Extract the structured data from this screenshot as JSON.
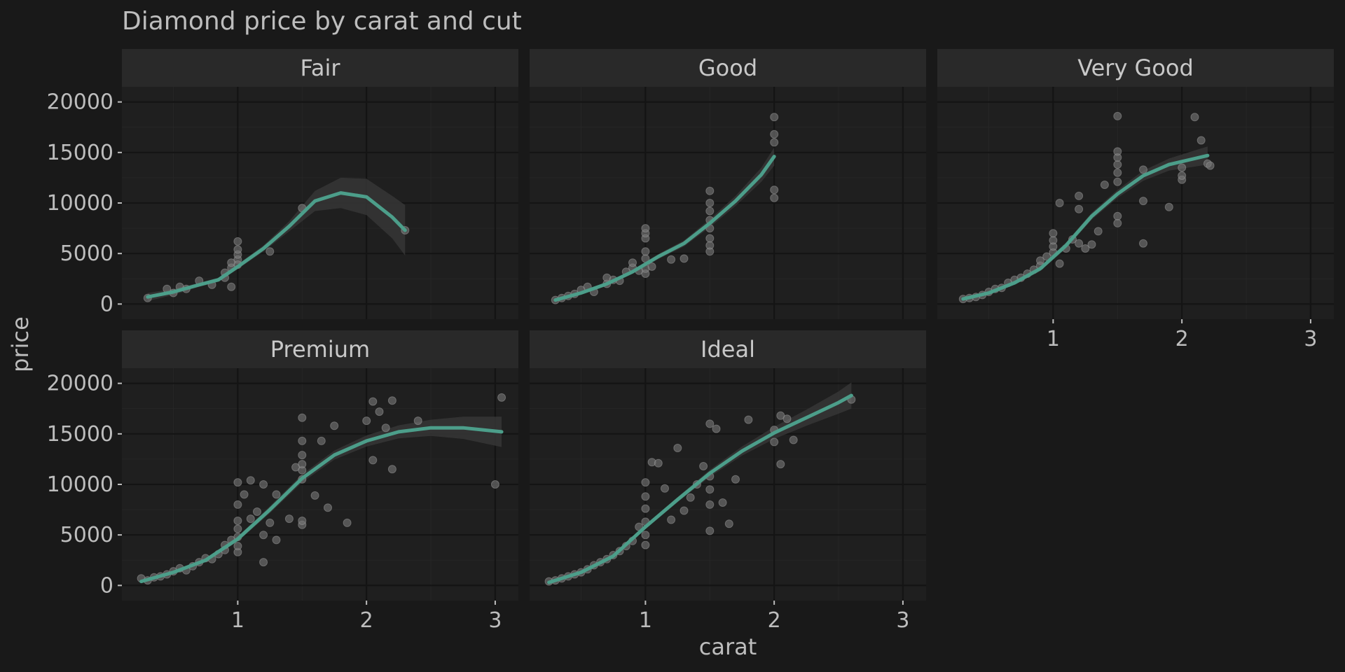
{
  "chart_data": {
    "type": "scatter",
    "title": "Diamond price by carat and cut",
    "xlabel": "carat",
    "ylabel": "price",
    "xlim": [
      0.1,
      3.18
    ],
    "ylim": [
      -1500,
      21500
    ],
    "x_ticks": [
      1,
      2,
      3
    ],
    "y_ticks": [
      0,
      5000,
      10000,
      15000,
      20000
    ],
    "grid": true,
    "colors": {
      "background": "#191919",
      "panel": "#1f1f1f",
      "strip": "#292929",
      "grid_major": "#141414",
      "grid_minor": "#262626",
      "point": "#7a7a7a",
      "smooth_line": "#4c9e8a",
      "ribbon": "#3a3a3a",
      "text": "#bdbdbd"
    },
    "panels": [
      {
        "name": "Fair",
        "points": [
          [
            0.3,
            600
          ],
          [
            0.45,
            1500
          ],
          [
            0.5,
            1100
          ],
          [
            0.55,
            1700
          ],
          [
            0.6,
            1500
          ],
          [
            0.7,
            2300
          ],
          [
            0.8,
            1900
          ],
          [
            0.9,
            2600
          ],
          [
            0.9,
            3100
          ],
          [
            0.95,
            3600
          ],
          [
            0.95,
            4100
          ],
          [
            1.0,
            4400
          ],
          [
            1.0,
            3900
          ],
          [
            1.0,
            4900
          ],
          [
            1.0,
            5400
          ],
          [
            1.0,
            6200
          ],
          [
            0.95,
            1700
          ],
          [
            1.25,
            5200
          ],
          [
            1.5,
            9500
          ],
          [
            2.3,
            7300
          ]
        ],
        "smooth": [
          [
            0.3,
            700
          ],
          [
            0.5,
            1200
          ],
          [
            0.7,
            1900
          ],
          [
            0.85,
            2400
          ],
          [
            1.0,
            3700
          ],
          [
            1.2,
            5500
          ],
          [
            1.4,
            7700
          ],
          [
            1.6,
            10200
          ],
          [
            1.8,
            11000
          ],
          [
            2.0,
            10600
          ],
          [
            2.2,
            8600
          ],
          [
            2.3,
            7300
          ]
        ],
        "ribbon_halfwidth": [
          400,
          300,
          200,
          200,
          250,
          300,
          500,
          1000,
          1500,
          1800,
          2100,
          2500
        ]
      },
      {
        "name": "Good",
        "points": [
          [
            0.3,
            400
          ],
          [
            0.35,
            600
          ],
          [
            0.4,
            800
          ],
          [
            0.45,
            1000
          ],
          [
            0.5,
            1400
          ],
          [
            0.55,
            1700
          ],
          [
            0.6,
            1200
          ],
          [
            0.7,
            2000
          ],
          [
            0.7,
            2600
          ],
          [
            0.75,
            2400
          ],
          [
            0.8,
            2300
          ],
          [
            0.85,
            3200
          ],
          [
            0.9,
            3600
          ],
          [
            0.9,
            4100
          ],
          [
            0.95,
            3300
          ],
          [
            1.0,
            3000
          ],
          [
            1.0,
            3500
          ],
          [
            1.0,
            4500
          ],
          [
            1.0,
            5200
          ],
          [
            1.0,
            6500
          ],
          [
            1.0,
            7000
          ],
          [
            1.0,
            7500
          ],
          [
            1.05,
            3700
          ],
          [
            1.2,
            4400
          ],
          [
            1.3,
            4500
          ],
          [
            1.5,
            5200
          ],
          [
            1.5,
            5800
          ],
          [
            1.5,
            6500
          ],
          [
            1.5,
            7500
          ],
          [
            1.5,
            8300
          ],
          [
            1.5,
            9200
          ],
          [
            1.5,
            10000
          ],
          [
            1.5,
            11200
          ],
          [
            2.0,
            10500
          ],
          [
            2.0,
            11300
          ],
          [
            2.0,
            16000
          ],
          [
            2.0,
            16800
          ],
          [
            2.0,
            18500
          ]
        ],
        "smooth": [
          [
            0.3,
            400
          ],
          [
            0.5,
            1100
          ],
          [
            0.7,
            2000
          ],
          [
            0.9,
            3200
          ],
          [
            1.1,
            4700
          ],
          [
            1.3,
            6000
          ],
          [
            1.5,
            8000
          ],
          [
            1.7,
            10200
          ],
          [
            1.9,
            12800
          ],
          [
            2.0,
            14600
          ]
        ],
        "ribbon_halfwidth": [
          200,
          150,
          150,
          200,
          250,
          300,
          400,
          500,
          700,
          900
        ]
      },
      {
        "name": "Very Good",
        "points": [
          [
            0.3,
            500
          ],
          [
            0.35,
            600
          ],
          [
            0.4,
            700
          ],
          [
            0.45,
            900
          ],
          [
            0.5,
            1200
          ],
          [
            0.55,
            1500
          ],
          [
            0.6,
            1600
          ],
          [
            0.65,
            2100
          ],
          [
            0.7,
            2400
          ],
          [
            0.75,
            2600
          ],
          [
            0.8,
            3000
          ],
          [
            0.85,
            3400
          ],
          [
            0.9,
            3800
          ],
          [
            0.9,
            4300
          ],
          [
            0.95,
            4700
          ],
          [
            1.0,
            5100
          ],
          [
            1.0,
            5700
          ],
          [
            1.0,
            6300
          ],
          [
            1.0,
            7000
          ],
          [
            1.05,
            4000
          ],
          [
            1.05,
            10000
          ],
          [
            1.1,
            5500
          ],
          [
            1.15,
            6400
          ],
          [
            1.2,
            6000
          ],
          [
            1.2,
            9400
          ],
          [
            1.2,
            10700
          ],
          [
            1.25,
            5500
          ],
          [
            1.3,
            5900
          ],
          [
            1.35,
            7200
          ],
          [
            1.4,
            11800
          ],
          [
            1.5,
            8000
          ],
          [
            1.5,
            8700
          ],
          [
            1.5,
            12100
          ],
          [
            1.5,
            13000
          ],
          [
            1.5,
            13800
          ],
          [
            1.5,
            14500
          ],
          [
            1.5,
            15100
          ],
          [
            1.5,
            18600
          ],
          [
            1.7,
            6000
          ],
          [
            1.7,
            10200
          ],
          [
            1.7,
            13300
          ],
          [
            1.9,
            9600
          ],
          [
            2.0,
            12300
          ],
          [
            2.0,
            12700
          ],
          [
            2.0,
            13500
          ],
          [
            2.1,
            18500
          ],
          [
            2.15,
            16200
          ],
          [
            2.2,
            13900
          ],
          [
            2.22,
            13700
          ]
        ],
        "smooth": [
          [
            0.3,
            500
          ],
          [
            0.5,
            1100
          ],
          [
            0.7,
            2100
          ],
          [
            0.9,
            3500
          ],
          [
            1.1,
            5800
          ],
          [
            1.3,
            8700
          ],
          [
            1.5,
            10900
          ],
          [
            1.7,
            12700
          ],
          [
            1.9,
            13800
          ],
          [
            2.1,
            14400
          ],
          [
            2.2,
            14700
          ]
        ],
        "ribbon_halfwidth": [
          150,
          150,
          200,
          250,
          300,
          350,
          400,
          500,
          600,
          800,
          900
        ]
      },
      {
        "name": "Premium",
        "points": [
          [
            0.25,
            700
          ],
          [
            0.3,
            500
          ],
          [
            0.35,
            800
          ],
          [
            0.4,
            900
          ],
          [
            0.45,
            1100
          ],
          [
            0.5,
            1400
          ],
          [
            0.55,
            1700
          ],
          [
            0.6,
            1500
          ],
          [
            0.65,
            1900
          ],
          [
            0.7,
            2300
          ],
          [
            0.75,
            2700
          ],
          [
            0.8,
            2600
          ],
          [
            0.85,
            3100
          ],
          [
            0.9,
            3500
          ],
          [
            0.9,
            4000
          ],
          [
            0.95,
            4500
          ],
          [
            1.0,
            3300
          ],
          [
            1.0,
            3900
          ],
          [
            1.0,
            4800
          ],
          [
            1.0,
            5600
          ],
          [
            1.0,
            6400
          ],
          [
            1.0,
            8000
          ],
          [
            1.0,
            10200
          ],
          [
            1.05,
            9000
          ],
          [
            1.1,
            10400
          ],
          [
            1.1,
            6600
          ],
          [
            1.15,
            7300
          ],
          [
            1.2,
            5000
          ],
          [
            1.2,
            2300
          ],
          [
            1.2,
            10000
          ],
          [
            1.25,
            6200
          ],
          [
            1.3,
            4500
          ],
          [
            1.3,
            9000
          ],
          [
            1.4,
            6600
          ],
          [
            1.45,
            11700
          ],
          [
            1.5,
            6000
          ],
          [
            1.5,
            6400
          ],
          [
            1.5,
            10500
          ],
          [
            1.5,
            11400
          ],
          [
            1.5,
            12000
          ],
          [
            1.5,
            12900
          ],
          [
            1.5,
            14300
          ],
          [
            1.5,
            16600
          ],
          [
            1.6,
            8900
          ],
          [
            1.65,
            14300
          ],
          [
            1.7,
            7700
          ],
          [
            1.75,
            15800
          ],
          [
            1.85,
            6200
          ],
          [
            2.0,
            16300
          ],
          [
            2.05,
            12400
          ],
          [
            2.05,
            18200
          ],
          [
            2.1,
            17200
          ],
          [
            2.15,
            15600
          ],
          [
            2.2,
            11500
          ],
          [
            2.2,
            18300
          ],
          [
            2.4,
            16300
          ],
          [
            3.0,
            10000
          ],
          [
            3.05,
            18600
          ]
        ],
        "smooth": [
          [
            0.25,
            400
          ],
          [
            0.5,
            1300
          ],
          [
            0.75,
            2500
          ],
          [
            1.0,
            4600
          ],
          [
            1.25,
            7500
          ],
          [
            1.5,
            10600
          ],
          [
            1.75,
            12900
          ],
          [
            2.0,
            14300
          ],
          [
            2.25,
            15200
          ],
          [
            2.5,
            15600
          ],
          [
            2.75,
            15600
          ],
          [
            3.05,
            15200
          ]
        ],
        "ribbon_halfwidth": [
          150,
          150,
          200,
          250,
          350,
          400,
          450,
          550,
          650,
          800,
          1100,
          1500
        ]
      },
      {
        "name": "Ideal",
        "points": [
          [
            0.25,
            400
          ],
          [
            0.3,
            500
          ],
          [
            0.35,
            700
          ],
          [
            0.4,
            900
          ],
          [
            0.45,
            1100
          ],
          [
            0.5,
            1300
          ],
          [
            0.55,
            1600
          ],
          [
            0.6,
            2000
          ],
          [
            0.65,
            2300
          ],
          [
            0.7,
            2600
          ],
          [
            0.75,
            3000
          ],
          [
            0.8,
            3400
          ],
          [
            0.85,
            3900
          ],
          [
            0.9,
            4400
          ],
          [
            0.95,
            5800
          ],
          [
            1.0,
            4000
          ],
          [
            1.0,
            5000
          ],
          [
            1.0,
            6300
          ],
          [
            1.0,
            7600
          ],
          [
            1.0,
            8800
          ],
          [
            1.0,
            10200
          ],
          [
            1.05,
            12200
          ],
          [
            1.1,
            12100
          ],
          [
            1.15,
            9600
          ],
          [
            1.2,
            6500
          ],
          [
            1.25,
            13600
          ],
          [
            1.3,
            7400
          ],
          [
            1.35,
            8700
          ],
          [
            1.4,
            10000
          ],
          [
            1.45,
            11800
          ],
          [
            1.5,
            5400
          ],
          [
            1.5,
            8000
          ],
          [
            1.5,
            9500
          ],
          [
            1.5,
            10800
          ],
          [
            1.5,
            16000
          ],
          [
            1.55,
            15500
          ],
          [
            1.6,
            8200
          ],
          [
            1.65,
            6100
          ],
          [
            1.7,
            10500
          ],
          [
            1.8,
            16400
          ],
          [
            2.0,
            14200
          ],
          [
            2.0,
            15400
          ],
          [
            2.05,
            12000
          ],
          [
            2.05,
            16800
          ],
          [
            2.1,
            16500
          ],
          [
            2.15,
            14400
          ],
          [
            2.6,
            18400
          ]
        ],
        "smooth": [
          [
            0.25,
            300
          ],
          [
            0.5,
            1300
          ],
          [
            0.75,
            2900
          ],
          [
            1.0,
            5800
          ],
          [
            1.25,
            8500
          ],
          [
            1.5,
            11100
          ],
          [
            1.75,
            13300
          ],
          [
            2.0,
            15100
          ],
          [
            2.25,
            16600
          ],
          [
            2.5,
            18100
          ],
          [
            2.6,
            18800
          ]
        ],
        "ribbon_halfwidth": [
          100,
          100,
          150,
          200,
          250,
          350,
          450,
          600,
          800,
          1100,
          1300
        ]
      }
    ]
  }
}
